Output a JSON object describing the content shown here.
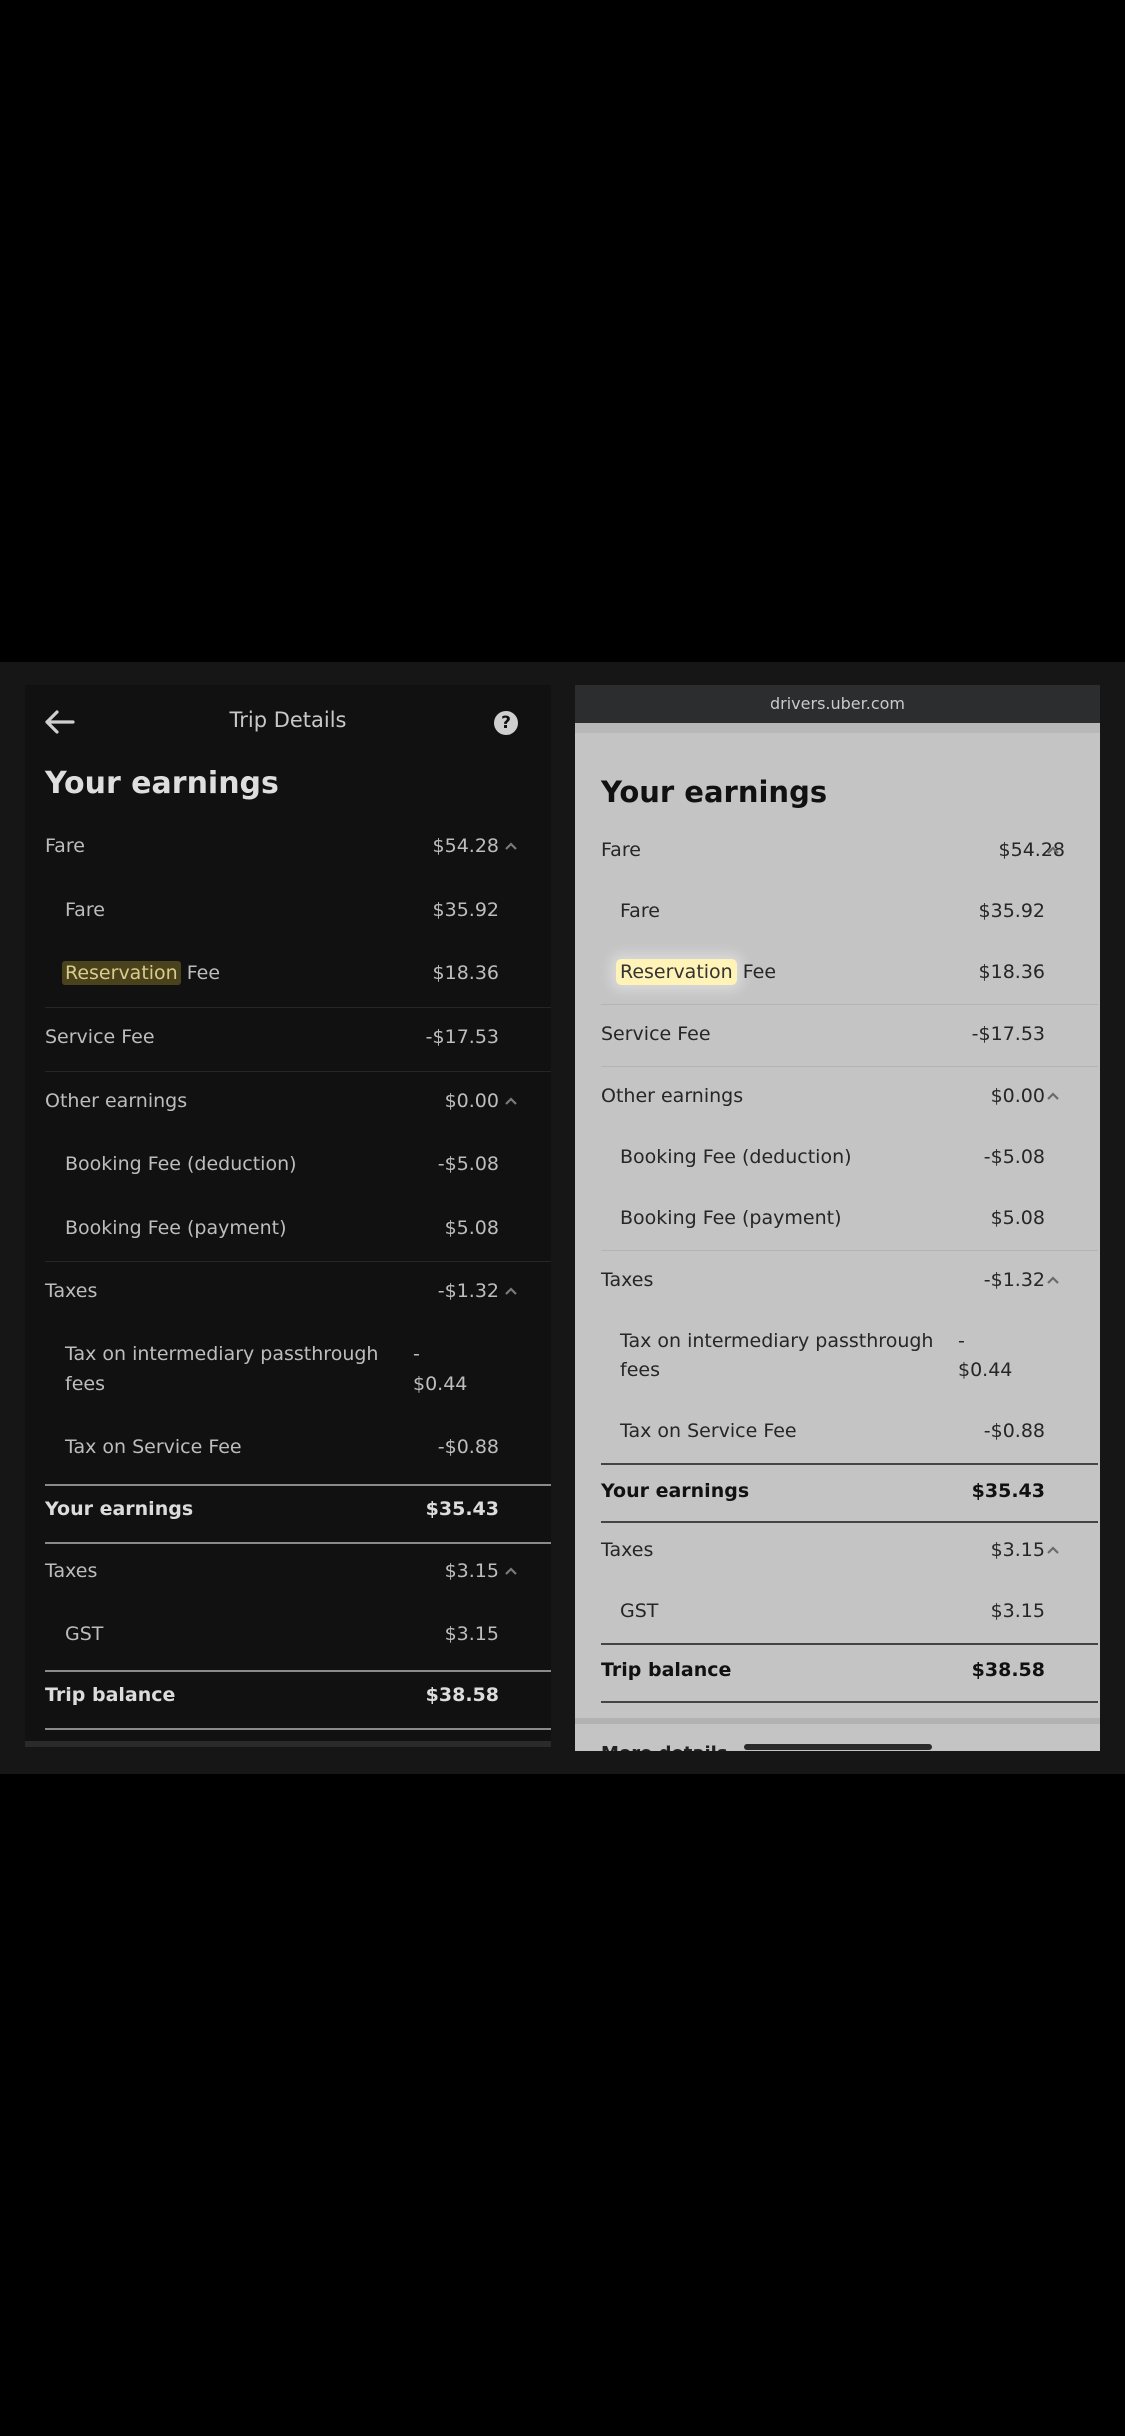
{
  "left": {
    "header_title": "Trip Details",
    "help_icon": "?",
    "title": "Your earnings",
    "fare_label": "Fare",
    "fare_amount": "$54.28",
    "fare_sub_label": "Fare",
    "fare_sub_amount": "$35.92",
    "reservation_highlight": "Reservation",
    "reservation_rest": " Fee",
    "reservation_amount": "$18.36",
    "service_fee_label": "Service Fee",
    "service_fee_amount": "-$17.53",
    "other_earnings_label": "Other earnings",
    "other_earnings_amount": "$0.00",
    "booking_deduction_label": "Booking Fee (deduction)",
    "booking_deduction_amount": "-$5.08",
    "booking_payment_label": "Booking Fee (payment)",
    "booking_payment_amount": "$5.08",
    "taxes_label": "Taxes",
    "taxes_amount": "-$1.32",
    "tax_intermediary_line1": "Tax on intermediary passthrough",
    "tax_intermediary_line2": "fees",
    "tax_intermediary_amount_line1": "-",
    "tax_intermediary_amount_line2": "$0.44",
    "tax_service_label": "Tax on Service Fee",
    "tax_service_amount": "-$0.88",
    "your_earnings_label": "Your earnings",
    "your_earnings_amount": "$35.43",
    "taxes2_label": "Taxes",
    "taxes2_amount": "$3.15",
    "gst_label": "GST",
    "gst_amount": "$3.15",
    "trip_balance_label": "Trip balance",
    "trip_balance_amount": "$38.58"
  },
  "right": {
    "url": "drivers.uber.com",
    "title": "Your earnings",
    "fare_label": "Fare",
    "fare_amount": "$54.28",
    "fare_sub_label": "Fare",
    "fare_sub_amount": "$35.92",
    "reservation_highlight": "Reservation",
    "reservation_rest": " Fee",
    "reservation_amount": "$18.36",
    "service_fee_label": "Service Fee",
    "service_fee_amount": "-$17.53",
    "other_earnings_label": "Other earnings",
    "other_earnings_amount": "$0.00",
    "booking_deduction_label": "Booking Fee (deduction)",
    "booking_deduction_amount": "-$5.08",
    "booking_payment_label": "Booking Fee (payment)",
    "booking_payment_amount": "$5.08",
    "taxes_label": "Taxes",
    "taxes_amount": "-$1.32",
    "tax_intermediary_line1": "Tax on intermediary passthrough",
    "tax_intermediary_line2": "fees",
    "tax_intermediary_amount_line1": "-",
    "tax_intermediary_amount_line2": "$0.44",
    "tax_service_label": "Tax on Service Fee",
    "tax_service_amount": "-$0.88",
    "your_earnings_label": "Your earnings",
    "your_earnings_amount": "$35.43",
    "taxes2_label": "Taxes",
    "taxes2_amount": "$3.15",
    "gst_label": "GST",
    "gst_amount": "$3.15",
    "trip_balance_label": "Trip balance",
    "trip_balance_amount": "$38.58",
    "more_details_label": "More details"
  },
  "colors": {
    "page_background": "#000000",
    "dark_panel": "#111111",
    "light_panel": "#c4c4c4",
    "highlight_dark": "#4a421c",
    "highlight_light": "#fff3b8"
  },
  "icons": [
    "back-arrow-icon",
    "help-icon",
    "chevron-up-icon"
  ]
}
